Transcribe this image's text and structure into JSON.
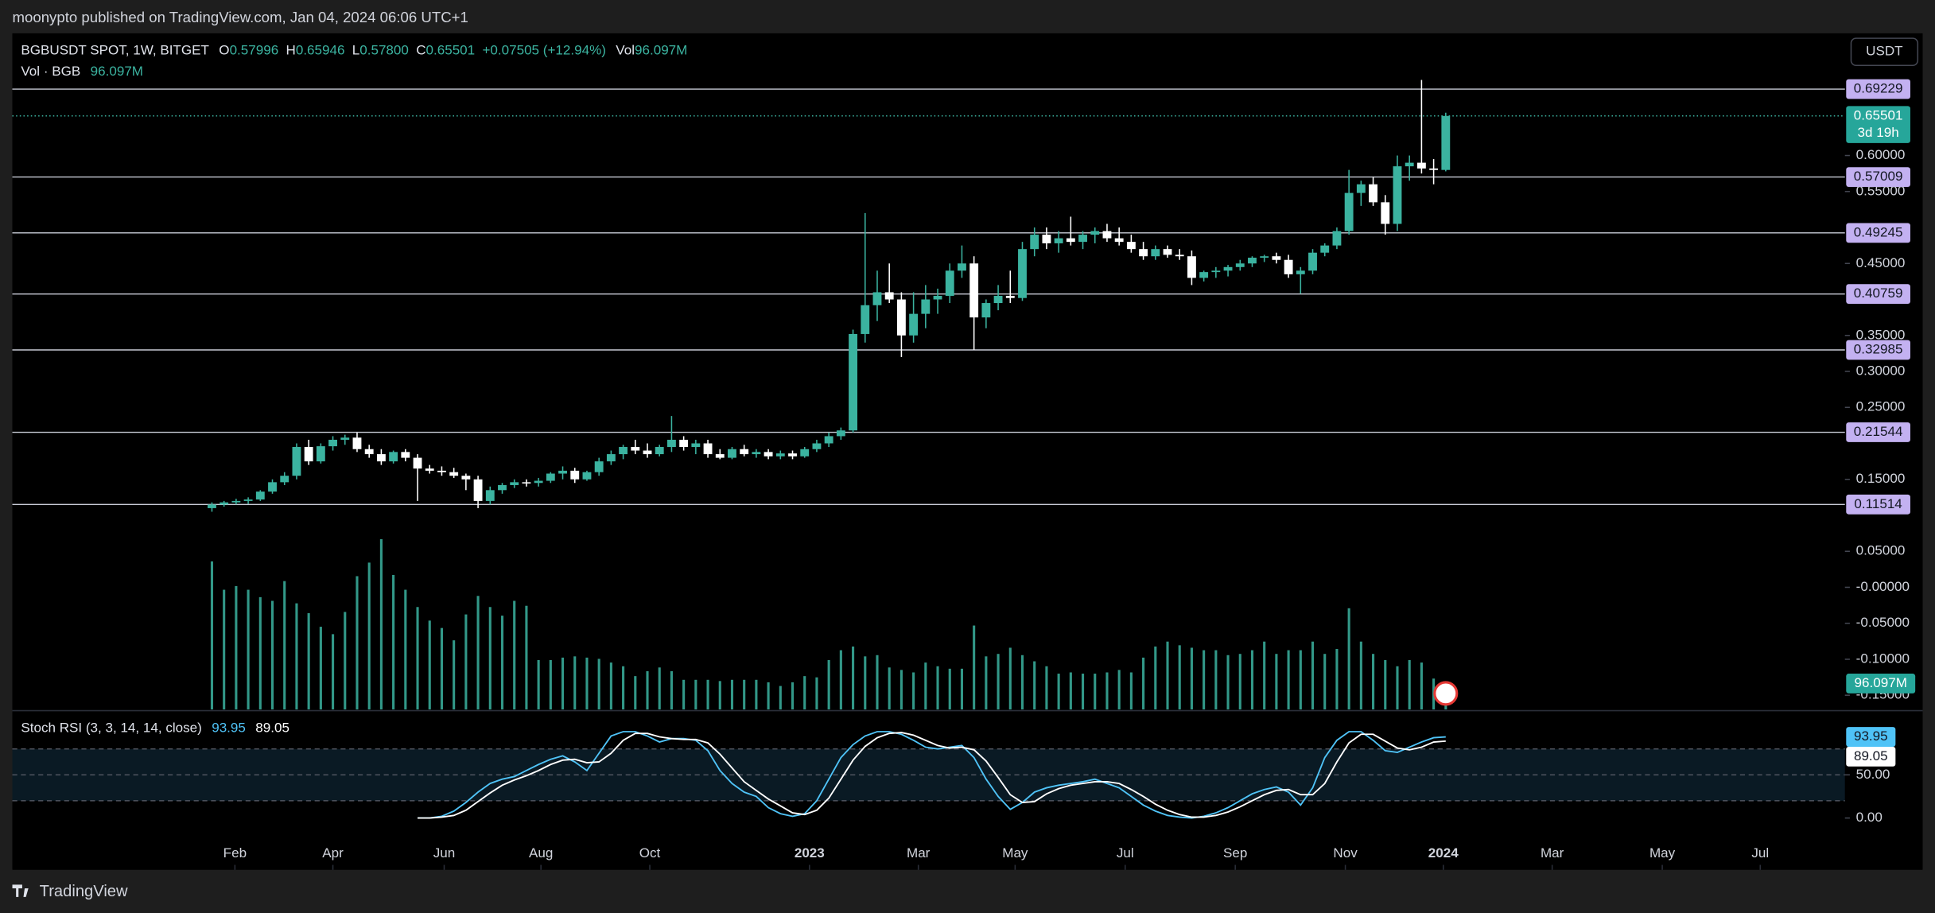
{
  "page": {
    "published": "moonypto published on TradingView.com, Jan 04, 2024 06:06 UTC+1",
    "logo": "TradingView",
    "currency_button": "USDT"
  },
  "chart_data": {
    "type": "candlestick",
    "header": {
      "symbol": "BGBUSDT SPOT, 1W, BITGET",
      "fields": [
        {
          "label": "O",
          "value": "0.57996"
        },
        {
          "label": "H",
          "value": "0.65946"
        },
        {
          "label": "L",
          "value": "0.57800"
        },
        {
          "label": "C",
          "value": "0.65501"
        }
      ],
      "change": "+0.07505 (+12.94%)",
      "vol_label": "Vol",
      "vol": "96.097M"
    },
    "volume_pane": {
      "title": "Vol · BGB",
      "last": "96.097M"
    },
    "up_color": "#3bb3a0",
    "down_color": "#ffffff",
    "level_color": "#c3b1f1",
    "xlim": [
      -16.5,
      135
    ],
    "xticks": [
      {
        "value": 1.9,
        "label": "Feb"
      },
      {
        "value": 10,
        "label": "Apr"
      },
      {
        "value": 19.2,
        "label": "Jun"
      },
      {
        "value": 27.2,
        "label": "Aug"
      },
      {
        "value": 36.2,
        "label": "Oct"
      },
      {
        "value": 49.4,
        "label": "2023"
      },
      {
        "value": 58.4,
        "label": "Mar"
      },
      {
        "value": 66.4,
        "label": "May"
      },
      {
        "value": 75.5,
        "label": "Jul"
      },
      {
        "value": 84.6,
        "label": "Sep"
      },
      {
        "value": 93.7,
        "label": "Nov"
      },
      {
        "value": 101.8,
        "label": "2024"
      },
      {
        "value": 110.8,
        "label": "Mar"
      },
      {
        "value": 119.9,
        "label": "May"
      },
      {
        "value": 128,
        "label": "Jul"
      }
    ],
    "ylim": [
      -0.1697,
      0.7698
    ],
    "yticks": [
      {
        "value": 0.6,
        "label": "0.60000"
      },
      {
        "value": 0.55,
        "label": "0.55000"
      },
      {
        "value": 0.45,
        "label": "0.45000"
      },
      {
        "value": 0.35,
        "label": "0.35000"
      },
      {
        "value": 0.3,
        "label": "0.30000"
      },
      {
        "value": 0.25,
        "label": "0.25000"
      },
      {
        "value": 0.15,
        "label": "0.15000"
      },
      {
        "value": 0.05,
        "label": "0.05000"
      },
      {
        "value": 0,
        "label": "-0.00000"
      },
      {
        "value": -0.05,
        "label": "-0.05000"
      },
      {
        "value": -0.1,
        "label": "-0.10000"
      },
      {
        "value": -0.15,
        "label": "-0.15000"
      }
    ],
    "levels": [
      0.69229,
      0.57009,
      0.49245,
      0.40759,
      0.32985,
      0.21544,
      0.11514
    ],
    "last_price": {
      "value": 0.65501,
      "countdown": "3d 19h"
    },
    "candles": [
      [
        0.11,
        0.118,
        0.105,
        0.115
      ],
      [
        0.115,
        0.12,
        0.112,
        0.118
      ],
      [
        0.118,
        0.123,
        0.115,
        0.12
      ],
      [
        0.12,
        0.125,
        0.116,
        0.122
      ],
      [
        0.122,
        0.135,
        0.12,
        0.133
      ],
      [
        0.133,
        0.15,
        0.13,
        0.146
      ],
      [
        0.146,
        0.16,
        0.142,
        0.155
      ],
      [
        0.155,
        0.2,
        0.15,
        0.195
      ],
      [
        0.195,
        0.205,
        0.17,
        0.175
      ],
      [
        0.175,
        0.2,
        0.172,
        0.196
      ],
      [
        0.196,
        0.21,
        0.19,
        0.205
      ],
      [
        0.205,
        0.212,
        0.198,
        0.208
      ],
      [
        0.208,
        0.215,
        0.188,
        0.192
      ],
      [
        0.192,
        0.198,
        0.18,
        0.185
      ],
      [
        0.185,
        0.192,
        0.17,
        0.175
      ],
      [
        0.175,
        0.19,
        0.172,
        0.188
      ],
      [
        0.188,
        0.192,
        0.175,
        0.18
      ],
      [
        0.18,
        0.185,
        0.12,
        0.165
      ],
      [
        0.165,
        0.17,
        0.158,
        0.162
      ],
      [
        0.162,
        0.168,
        0.155,
        0.16
      ],
      [
        0.16,
        0.166,
        0.152,
        0.155
      ],
      [
        0.155,
        0.158,
        0.135,
        0.15
      ],
      [
        0.15,
        0.155,
        0.11,
        0.12
      ],
      [
        0.12,
        0.14,
        0.115,
        0.135
      ],
      [
        0.135,
        0.145,
        0.13,
        0.142
      ],
      [
        0.142,
        0.15,
        0.138,
        0.146
      ],
      [
        0.146,
        0.15,
        0.14,
        0.145
      ],
      [
        0.145,
        0.152,
        0.14,
        0.148
      ],
      [
        0.148,
        0.16,
        0.145,
        0.158
      ],
      [
        0.158,
        0.168,
        0.15,
        0.162
      ],
      [
        0.162,
        0.166,
        0.145,
        0.15
      ],
      [
        0.15,
        0.162,
        0.148,
        0.16
      ],
      [
        0.16,
        0.18,
        0.155,
        0.175
      ],
      [
        0.175,
        0.19,
        0.17,
        0.185
      ],
      [
        0.185,
        0.198,
        0.178,
        0.195
      ],
      [
        0.195,
        0.205,
        0.185,
        0.19
      ],
      [
        0.19,
        0.2,
        0.18,
        0.185
      ],
      [
        0.185,
        0.198,
        0.182,
        0.195
      ],
      [
        0.195,
        0.238,
        0.188,
        0.205
      ],
      [
        0.205,
        0.21,
        0.19,
        0.195
      ],
      [
        0.195,
        0.205,
        0.185,
        0.2
      ],
      [
        0.2,
        0.205,
        0.18,
        0.185
      ],
      [
        0.185,
        0.192,
        0.178,
        0.18
      ],
      [
        0.18,
        0.195,
        0.178,
        0.192
      ],
      [
        0.192,
        0.198,
        0.182,
        0.185
      ],
      [
        0.185,
        0.192,
        0.18,
        0.188
      ],
      [
        0.188,
        0.192,
        0.178,
        0.182
      ],
      [
        0.182,
        0.19,
        0.178,
        0.186
      ],
      [
        0.186,
        0.19,
        0.178,
        0.182
      ],
      [
        0.182,
        0.195,
        0.18,
        0.192
      ],
      [
        0.192,
        0.205,
        0.188,
        0.2
      ],
      [
        0.2,
        0.215,
        0.195,
        0.21
      ],
      [
        0.21,
        0.222,
        0.205,
        0.218
      ],
      [
        0.218,
        0.358,
        0.215,
        0.352
      ],
      [
        0.352,
        0.52,
        0.34,
        0.392
      ],
      [
        0.392,
        0.44,
        0.37,
        0.41
      ],
      [
        0.41,
        0.45,
        0.395,
        0.4
      ],
      [
        0.4,
        0.41,
        0.32,
        0.35
      ],
      [
        0.35,
        0.41,
        0.34,
        0.38
      ],
      [
        0.38,
        0.42,
        0.36,
        0.4
      ],
      [
        0.4,
        0.415,
        0.38,
        0.405
      ],
      [
        0.405,
        0.45,
        0.395,
        0.44
      ],
      [
        0.44,
        0.475,
        0.43,
        0.45
      ],
      [
        0.45,
        0.46,
        0.33,
        0.375
      ],
      [
        0.375,
        0.4,
        0.36,
        0.395
      ],
      [
        0.395,
        0.42,
        0.385,
        0.405
      ],
      [
        0.405,
        0.44,
        0.395,
        0.402
      ],
      [
        0.402,
        0.48,
        0.398,
        0.47
      ],
      [
        0.47,
        0.5,
        0.46,
        0.49
      ],
      [
        0.49,
        0.5,
        0.47,
        0.478
      ],
      [
        0.478,
        0.495,
        0.465,
        0.485
      ],
      [
        0.485,
        0.515,
        0.475,
        0.48
      ],
      [
        0.48,
        0.495,
        0.47,
        0.49
      ],
      [
        0.49,
        0.5,
        0.478,
        0.495
      ],
      [
        0.495,
        0.505,
        0.48,
        0.485
      ],
      [
        0.485,
        0.5,
        0.475,
        0.48
      ],
      [
        0.48,
        0.49,
        0.465,
        0.47
      ],
      [
        0.47,
        0.48,
        0.455,
        0.46
      ],
      [
        0.46,
        0.475,
        0.455,
        0.47
      ],
      [
        0.47,
        0.475,
        0.458,
        0.462
      ],
      [
        0.462,
        0.47,
        0.455,
        0.46
      ],
      [
        0.46,
        0.468,
        0.42,
        0.43
      ],
      [
        0.43,
        0.44,
        0.425,
        0.438
      ],
      [
        0.438,
        0.445,
        0.43,
        0.44
      ],
      [
        0.44,
        0.448,
        0.432,
        0.445
      ],
      [
        0.445,
        0.455,
        0.44,
        0.45
      ],
      [
        0.45,
        0.46,
        0.445,
        0.458
      ],
      [
        0.458,
        0.462,
        0.452,
        0.46
      ],
      [
        0.46,
        0.465,
        0.45,
        0.455
      ],
      [
        0.455,
        0.462,
        0.43,
        0.435
      ],
      [
        0.435,
        0.445,
        0.408,
        0.44
      ],
      [
        0.44,
        0.47,
        0.435,
        0.465
      ],
      [
        0.465,
        0.478,
        0.46,
        0.475
      ],
      [
        0.475,
        0.5,
        0.47,
        0.495
      ],
      [
        0.495,
        0.58,
        0.49,
        0.548
      ],
      [
        0.548,
        0.565,
        0.53,
        0.56
      ],
      [
        0.56,
        0.57,
        0.53,
        0.535
      ],
      [
        0.535,
        0.545,
        0.49,
        0.505
      ],
      [
        0.505,
        0.6,
        0.495,
        0.585
      ],
      [
        0.585,
        0.6,
        0.565,
        0.59
      ],
      [
        0.59,
        0.705,
        0.575,
        0.582
      ],
      [
        0.582,
        0.595,
        0.56,
        0.57996
      ],
      [
        0.57996,
        0.65946,
        0.578,
        0.65501
      ]
    ],
    "volume_lim": [
      0,
      700
    ],
    "volume": [
      600,
      485,
      500,
      485,
      455,
      440,
      520,
      430,
      390,
      335,
      305,
      395,
      540,
      595,
      690,
      545,
      485,
      415,
      360,
      330,
      280,
      385,
      460,
      415,
      380,
      440,
      420,
      200,
      200,
      210,
      215,
      210,
      205,
      190,
      175,
      135,
      155,
      170,
      155,
      120,
      120,
      120,
      115,
      120,
      120,
      120,
      110,
      95,
      110,
      135,
      130,
      200,
      240,
      255,
      215,
      220,
      170,
      160,
      150,
      190,
      175,
      165,
      165,
      340,
      215,
      225,
      250,
      220,
      195,
      175,
      145,
      150,
      145,
      145,
      150,
      160,
      150,
      210,
      255,
      275,
      260,
      250,
      240,
      240,
      220,
      225,
      240,
      275,
      225,
      240,
      240,
      275,
      225,
      245,
      410,
      275,
      225,
      200,
      175,
      200,
      190,
      125,
      96.097
    ],
    "stoch_rsi": {
      "title": "Stoch RSI (3, 3, 14, 14, close)",
      "ylim": [
        -60,
        122.9
      ],
      "yticks": [
        {
          "value": 50,
          "label": "50.00"
        },
        {
          "value": 0,
          "label": "0.00"
        }
      ],
      "bands": [
        80,
        50,
        20
      ],
      "k_color": "#4fc3f7",
      "d_color": "#ffffff",
      "k": [
        null,
        null,
        null,
        null,
        null,
        null,
        null,
        null,
        null,
        null,
        null,
        null,
        null,
        null,
        null,
        null,
        null,
        0,
        0,
        2,
        8,
        18,
        30,
        40,
        45,
        48,
        55,
        62,
        68,
        72,
        65,
        55,
        75,
        95,
        100,
        100,
        95,
        88,
        92,
        92,
        90,
        78,
        55,
        40,
        30,
        25,
        12,
        5,
        2,
        5,
        20,
        45,
        70,
        85,
        95,
        100,
        100,
        97,
        90,
        82,
        80,
        82,
        84,
        70,
        45,
        25,
        10,
        18,
        30,
        35,
        38,
        40,
        42,
        45,
        40,
        35,
        25,
        15,
        8,
        3,
        1,
        0,
        2,
        6,
        12,
        20,
        28,
        33,
        36,
        30,
        15,
        35,
        70,
        90,
        100,
        100,
        90,
        78,
        76,
        82,
        88,
        93,
        93.95
      ],
      "d": [
        null,
        null,
        null,
        null,
        null,
        null,
        null,
        null,
        null,
        null,
        null,
        null,
        null,
        null,
        null,
        null,
        null,
        0,
        0,
        1,
        3,
        9,
        19,
        29,
        38,
        44,
        49,
        55,
        62,
        67,
        68,
        64,
        65,
        75,
        90,
        98,
        98,
        94,
        92,
        91,
        91,
        87,
        74,
        58,
        42,
        32,
        22,
        14,
        6,
        4,
        9,
        23,
        45,
        67,
        83,
        93,
        98,
        99,
        96,
        90,
        84,
        81,
        82,
        79,
        66,
        47,
        27,
        18,
        19,
        28,
        34,
        38,
        40,
        42,
        42,
        40,
        33,
        25,
        16,
        9,
        4,
        1,
        1,
        3,
        7,
        13,
        20,
        27,
        32,
        33,
        27,
        27,
        40,
        65,
        87,
        97,
        97,
        89,
        81,
        79,
        82,
        88,
        89.05
      ]
    }
  }
}
